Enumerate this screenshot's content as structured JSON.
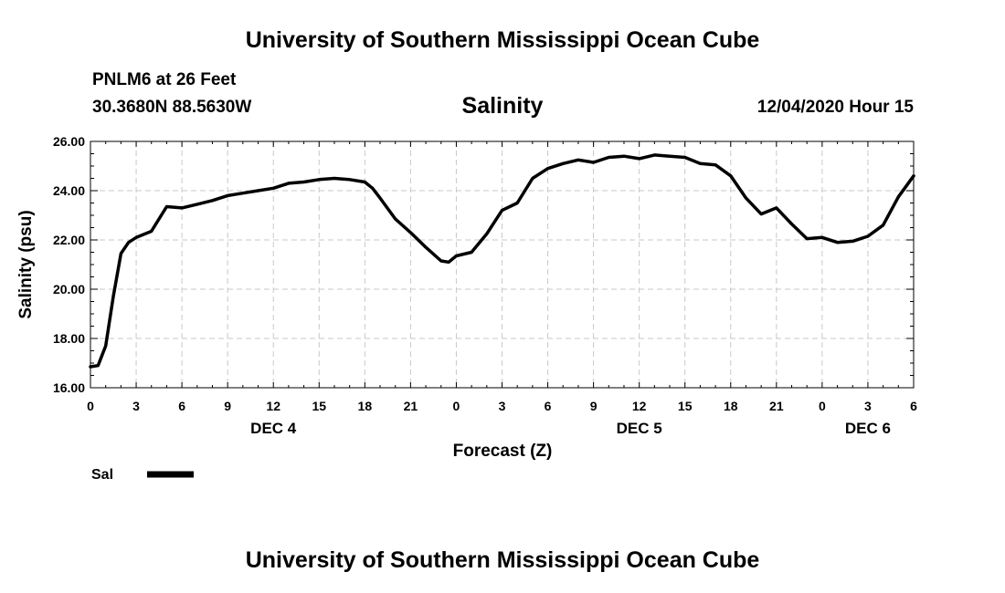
{
  "header": {
    "title": "University of Southern Mississippi Ocean Cube",
    "station": "PNLM6 at 26 Feet",
    "coordinates": "30.3680N 88.5630W",
    "run_time": "12/04/2020 Hour 15"
  },
  "footer": {
    "title": "University of Southern Mississippi Ocean Cube"
  },
  "chart_data": {
    "type": "line",
    "title": "Salinity",
    "xlabel": "Forecast (Z)",
    "ylabel": "Salinity (psu)",
    "xlim": [
      0,
      54
    ],
    "ylim": [
      16,
      26
    ],
    "y_ticks": [
      "16.00",
      "18.00",
      "20.00",
      "22.00",
      "24.00",
      "26.00"
    ],
    "x_tick_labels": [
      "0",
      "3",
      "6",
      "9",
      "12",
      "15",
      "18",
      "21",
      "0",
      "3",
      "6",
      "9",
      "12",
      "15",
      "18",
      "21",
      "0",
      "3",
      "6"
    ],
    "day_labels": [
      {
        "label": "DEC 4",
        "hour": 12
      },
      {
        "label": "DEC 5",
        "hour": 36
      },
      {
        "label": "DEC 6",
        "hour": 51
      }
    ],
    "grid": true,
    "legend_placement": "bottom-left",
    "series": [
      {
        "name": "Sal",
        "color": "#000000",
        "x": [
          0,
          0.5,
          1,
          1.5,
          2,
          2.5,
          3,
          4,
          5,
          6,
          7,
          8,
          9,
          10,
          11,
          12,
          13,
          14,
          15,
          16,
          17,
          18,
          18.5,
          19,
          20,
          21,
          22,
          23,
          23.5,
          24,
          25,
          26,
          27,
          28,
          29,
          30,
          31,
          32,
          33,
          34,
          35,
          36,
          37,
          38,
          39,
          40,
          41,
          42,
          43,
          44,
          45,
          46,
          47,
          48,
          49,
          50,
          51,
          52,
          53,
          54
        ],
        "values": [
          16.85,
          16.9,
          17.7,
          19.7,
          21.45,
          21.9,
          22.1,
          22.35,
          23.35,
          23.3,
          23.45,
          23.6,
          23.8,
          23.9,
          24.0,
          24.1,
          24.3,
          24.35,
          24.45,
          24.5,
          24.45,
          24.35,
          24.1,
          23.7,
          22.85,
          22.3,
          21.7,
          21.15,
          21.1,
          21.35,
          21.5,
          22.25,
          23.2,
          23.5,
          24.5,
          24.9,
          25.1,
          25.25,
          25.15,
          25.35,
          25.4,
          25.3,
          25.45,
          25.4,
          25.35,
          25.1,
          25.05,
          24.6,
          23.7,
          23.05,
          23.3,
          22.65,
          22.05,
          22.1,
          21.9,
          21.95,
          22.15,
          22.6,
          23.75,
          24.6
        ]
      }
    ]
  },
  "legend": {
    "label": "Sal"
  }
}
